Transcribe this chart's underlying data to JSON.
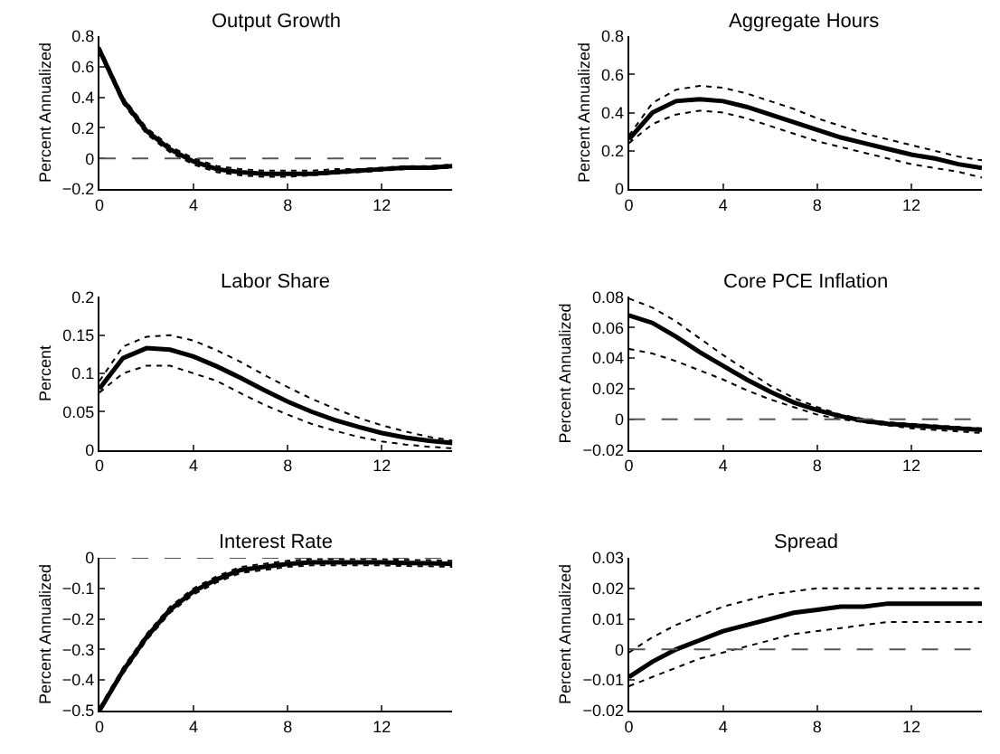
{
  "chart_data": [
    {
      "type": "line",
      "title": "Output Growth",
      "ylabel": "Percent Annualized",
      "x": [
        0,
        1,
        2,
        3,
        4,
        5,
        6,
        7,
        8,
        9,
        10,
        11,
        12,
        13,
        14,
        15
      ],
      "xlim": [
        0,
        15
      ],
      "xticks": [
        0,
        4,
        8,
        12
      ],
      "ylim": [
        -0.2,
        0.8
      ],
      "yticks": [
        {
          "value": -0.2,
          "label": "−0.2"
        },
        0,
        0.2,
        0.4,
        0.6,
        0.8
      ],
      "ref_lines": [
        {
          "axis": "y",
          "value": 0,
          "line_style": "dashed",
          "color": "#555555"
        }
      ],
      "series": [
        {
          "color": "#000000",
          "line_style": "dotted",
          "values": [
            0.69,
            0.36,
            0.16,
            0.04,
            -0.04,
            -0.09,
            -0.11,
            -0.12,
            -0.12,
            -0.11,
            -0.1,
            -0.09,
            -0.08,
            -0.07,
            -0.07,
            -0.06
          ]
        },
        {
          "color": "#000000",
          "line_style": "dotted",
          "values": [
            0.73,
            0.4,
            0.2,
            0.08,
            0.0,
            -0.05,
            -0.07,
            -0.08,
            -0.08,
            -0.08,
            -0.07,
            -0.07,
            -0.06,
            -0.05,
            -0.05,
            -0.04
          ]
        },
        {
          "color": "#000000",
          "line_style": "solid",
          "values": [
            0.71,
            0.38,
            0.18,
            0.06,
            -0.02,
            -0.07,
            -0.09,
            -0.1,
            -0.1,
            -0.1,
            -0.09,
            -0.08,
            -0.07,
            -0.06,
            -0.06,
            -0.05
          ]
        }
      ]
    },
    {
      "type": "line",
      "title": "Aggregate Hours",
      "ylabel": "Percent Annualized",
      "x": [
        0,
        1,
        2,
        3,
        4,
        5,
        6,
        7,
        8,
        9,
        10,
        11,
        12,
        13,
        14,
        15
      ],
      "xlim": [
        0,
        15
      ],
      "xticks": [
        0,
        4,
        8,
        12
      ],
      "ylim": [
        0,
        0.8
      ],
      "yticks": [
        0,
        0.2,
        0.4,
        0.6,
        0.8
      ],
      "series": [
        {
          "color": "#000000",
          "line_style": "dotted",
          "values": [
            0.24,
            0.34,
            0.39,
            0.41,
            0.4,
            0.37,
            0.33,
            0.29,
            0.25,
            0.22,
            0.19,
            0.16,
            0.13,
            0.11,
            0.09,
            0.06
          ]
        },
        {
          "color": "#000000",
          "line_style": "dotted",
          "values": [
            0.28,
            0.45,
            0.52,
            0.54,
            0.53,
            0.5,
            0.46,
            0.42,
            0.37,
            0.33,
            0.29,
            0.26,
            0.23,
            0.2,
            0.17,
            0.15
          ]
        },
        {
          "color": "#000000",
          "line_style": "solid",
          "values": [
            0.26,
            0.4,
            0.46,
            0.47,
            0.46,
            0.43,
            0.39,
            0.35,
            0.31,
            0.27,
            0.24,
            0.21,
            0.18,
            0.16,
            0.13,
            0.11
          ]
        }
      ]
    },
    {
      "type": "line",
      "title": "Labor Share",
      "ylabel": "Percent",
      "x": [
        0,
        1,
        2,
        3,
        4,
        5,
        6,
        7,
        8,
        9,
        10,
        11,
        12,
        13,
        14,
        15
      ],
      "xlim": [
        0,
        15
      ],
      "xticks": [
        0,
        4,
        8,
        12
      ],
      "ylim": [
        0,
        0.2
      ],
      "yticks": [
        0,
        0.05,
        0.1,
        0.15,
        0.2
      ],
      "series": [
        {
          "color": "#000000",
          "line_style": "dotted",
          "values": [
            0.075,
            0.1,
            0.11,
            0.11,
            0.1,
            0.09,
            0.074,
            0.059,
            0.046,
            0.034,
            0.025,
            0.017,
            0.011,
            0.007,
            0.004,
            0.002
          ]
        },
        {
          "color": "#000000",
          "line_style": "dotted",
          "values": [
            0.09,
            0.135,
            0.148,
            0.15,
            0.143,
            0.13,
            0.115,
            0.098,
            0.082,
            0.067,
            0.054,
            0.042,
            0.032,
            0.024,
            0.017,
            0.012
          ]
        },
        {
          "color": "#000000",
          "line_style": "solid",
          "values": [
            0.08,
            0.12,
            0.133,
            0.131,
            0.122,
            0.109,
            0.094,
            0.078,
            0.063,
            0.05,
            0.039,
            0.03,
            0.022,
            0.016,
            0.012,
            0.009
          ]
        }
      ]
    },
    {
      "type": "line",
      "title": "Core PCE Inflation",
      "ylabel": "Percent Annualized",
      "x": [
        0,
        1,
        2,
        3,
        4,
        5,
        6,
        7,
        8,
        9,
        10,
        11,
        12,
        13,
        14,
        15
      ],
      "xlim": [
        0,
        15
      ],
      "xticks": [
        0,
        4,
        8,
        12
      ],
      "ylim": [
        -0.02,
        0.08
      ],
      "yticks": [
        {
          "value": -0.02,
          "label": "−0.02"
        },
        0,
        0.02,
        0.04,
        0.06,
        0.08
      ],
      "ref_lines": [
        {
          "axis": "y",
          "value": 0,
          "line_style": "dashed",
          "color": "#555555"
        }
      ],
      "series": [
        {
          "color": "#000000",
          "line_style": "dotted",
          "values": [
            0.046,
            0.043,
            0.038,
            0.032,
            0.026,
            0.019,
            0.013,
            0.008,
            0.003,
            0.0,
            -0.002,
            -0.004,
            -0.006,
            -0.007,
            -0.008,
            -0.009
          ]
        },
        {
          "color": "#000000",
          "line_style": "dotted",
          "values": [
            0.079,
            0.073,
            0.064,
            0.053,
            0.042,
            0.032,
            0.022,
            0.014,
            0.008,
            0.003,
            0.0,
            -0.002,
            -0.003,
            -0.004,
            -0.005,
            -0.006
          ]
        },
        {
          "color": "#000000",
          "line_style": "solid",
          "values": [
            0.068,
            0.063,
            0.054,
            0.044,
            0.035,
            0.026,
            0.018,
            0.011,
            0.006,
            0.002,
            -0.001,
            -0.003,
            -0.004,
            -0.005,
            -0.006,
            -0.007
          ]
        }
      ]
    },
    {
      "type": "line",
      "title": "Interest Rate",
      "ylabel": "Percent Annualized",
      "x": [
        0,
        1,
        2,
        3,
        4,
        5,
        6,
        7,
        8,
        9,
        10,
        11,
        12,
        13,
        14,
        15
      ],
      "xlim": [
        0,
        15
      ],
      "xticks": [
        0,
        4,
        8,
        12
      ],
      "ylim": [
        -0.5,
        0
      ],
      "yticks": [
        {
          "value": -0.5,
          "label": "−0.5"
        },
        {
          "value": -0.4,
          "label": "−0.4"
        },
        {
          "value": -0.3,
          "label": "−0.3"
        },
        {
          "value": -0.2,
          "label": "−0.2"
        },
        {
          "value": -0.1,
          "label": "−0.1"
        },
        0
      ],
      "ref_lines": [
        {
          "axis": "y",
          "value": 0,
          "line_style": "dashed",
          "color": "#555555"
        }
      ],
      "series": [
        {
          "color": "#000000",
          "line_style": "dotted",
          "values": [
            -0.5,
            -0.38,
            -0.27,
            -0.18,
            -0.12,
            -0.08,
            -0.05,
            -0.04,
            -0.03,
            -0.025,
            -0.025,
            -0.025,
            -0.025,
            -0.027,
            -0.028,
            -0.03
          ]
        },
        {
          "color": "#000000",
          "line_style": "dotted",
          "values": [
            -0.49,
            -0.36,
            -0.25,
            -0.16,
            -0.1,
            -0.06,
            -0.03,
            -0.02,
            -0.01,
            -0.005,
            -0.005,
            -0.005,
            -0.005,
            -0.007,
            -0.008,
            -0.01
          ]
        },
        {
          "color": "#000000",
          "line_style": "solid",
          "values": [
            -0.5,
            -0.37,
            -0.26,
            -0.17,
            -0.11,
            -0.07,
            -0.04,
            -0.03,
            -0.02,
            -0.015,
            -0.015,
            -0.015,
            -0.015,
            -0.017,
            -0.018,
            -0.02
          ]
        }
      ]
    },
    {
      "type": "line",
      "title": "Spread",
      "ylabel": "Percent Annualized",
      "x": [
        0,
        1,
        2,
        3,
        4,
        5,
        6,
        7,
        8,
        9,
        10,
        11,
        12,
        13,
        14,
        15
      ],
      "xlim": [
        0,
        15
      ],
      "xticks": [
        0,
        4,
        8,
        12
      ],
      "ylim": [
        -0.02,
        0.03
      ],
      "yticks": [
        {
          "value": -0.02,
          "label": "−0.02"
        },
        {
          "value": -0.01,
          "label": "−0.01"
        },
        0,
        0.01,
        0.02,
        0.03
      ],
      "ref_lines": [
        {
          "axis": "y",
          "value": 0,
          "line_style": "dashed",
          "color": "#555555"
        }
      ],
      "series": [
        {
          "color": "#000000",
          "line_style": "dotted",
          "values": [
            -0.012,
            -0.009,
            -0.006,
            -0.003,
            -0.001,
            0.001,
            0.003,
            0.005,
            0.006,
            0.007,
            0.008,
            0.009,
            0.009,
            0.009,
            0.009,
            0.009
          ]
        },
        {
          "color": "#000000",
          "line_style": "dotted",
          "values": [
            -0.001,
            0.004,
            0.008,
            0.011,
            0.014,
            0.016,
            0.018,
            0.019,
            0.02,
            0.02,
            0.02,
            0.02,
            0.02,
            0.02,
            0.02,
            0.02
          ]
        },
        {
          "color": "#000000",
          "line_style": "solid",
          "values": [
            -0.009,
            -0.004,
            0.0,
            0.003,
            0.006,
            0.008,
            0.01,
            0.012,
            0.013,
            0.014,
            0.014,
            0.015,
            0.015,
            0.015,
            0.015,
            0.015
          ]
        }
      ]
    }
  ]
}
